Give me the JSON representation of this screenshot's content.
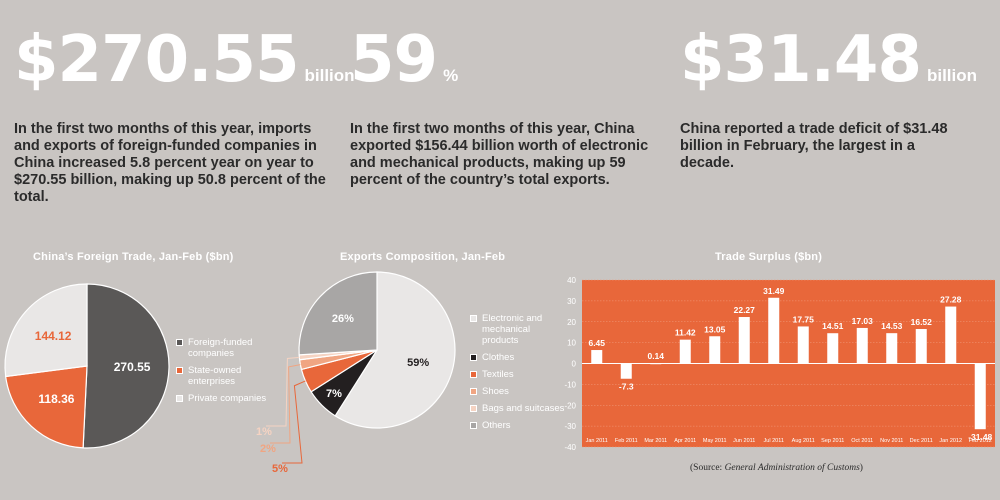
{
  "stats": [
    {
      "big": "$270.55",
      "unit": "billion",
      "desc": "In the first two months of this year, imports and exports of foreign-funded companies in China increased 5.8 percent year on year to $270.55 billion, making up 50.8 percent of the total."
    },
    {
      "big": "59",
      "unit": "%",
      "desc": "In the first two months of this year, China exported $156.44 billion worth of electronic and mechanical products, making up 59 percent of the country’s total exports."
    },
    {
      "big": "$31.48",
      "unit": "billion",
      "desc": "China reported a trade deficit of $31.48 billion in February, the largest in a decade."
    }
  ],
  "colors": {
    "orange": "#e8673a",
    "dark": "#5a5857",
    "light": "#e9e7e6",
    "gray": "#a8a6a5",
    "black": "#231f20"
  },
  "source": {
    "prefix": "(Source: ",
    "name": "General Administration of Customs",
    "suffix": ")"
  },
  "chart_data": [
    {
      "type": "pie",
      "title": "China’s Foreign Trade, Jan-Feb ($bn)",
      "labels": [
        "Foreign-funded companies",
        "State-owned enterprises",
        "Private companies"
      ],
      "values": [
        270.55,
        118.36,
        144.12
      ],
      "value_labels": [
        "270.55",
        "118.36",
        "144.12"
      ],
      "colors": [
        "#5a5857",
        "#e8673a",
        "#e9e7e6"
      ],
      "legend_position": "right"
    },
    {
      "type": "pie",
      "title": "Exports Composition, Jan-Feb",
      "labels": [
        "Electronic and mechanical products",
        "Clothes",
        "Textiles",
        "Shoes",
        "Bags and suitcases",
        "Others"
      ],
      "values": [
        59,
        7,
        5,
        2,
        1,
        26
      ],
      "value_labels": [
        "59%",
        "7%",
        "5%",
        "2%",
        "1%",
        "26%"
      ],
      "colors": [
        "#e9e7e6",
        "#231f20",
        "#e8673a",
        "#f0a582",
        "#f5d3c2",
        "#a8a6a5"
      ],
      "legend_position": "right"
    },
    {
      "type": "bar",
      "title": "Trade Surplus ($bn)",
      "categories": [
        "Jan 2011",
        "Feb 2011",
        "Mar 2011",
        "Apr 2011",
        "May 2011",
        "Jun 2011",
        "Jul 2011",
        "Aug 2011",
        "Sep 2011",
        "Oct 2011",
        "Nov 2011",
        "Dec 2011",
        "Jan 2012",
        "Feb 2012"
      ],
      "values": [
        6.45,
        -7.3,
        0.14,
        11.42,
        13.05,
        22.27,
        31.49,
        17.75,
        14.51,
        17.03,
        14.53,
        16.52,
        27.28,
        -31.48
      ],
      "value_labels": [
        "6.45",
        "-7.3",
        "0.14",
        "11.42",
        "13.05",
        "22.27",
        "31.49",
        "17.75",
        "14.51",
        "17.03",
        "14.53",
        "16.52",
        "27.28",
        "-31.48"
      ],
      "yticks": [
        40,
        30,
        20,
        10,
        0,
        -10,
        -20,
        -30,
        -40
      ],
      "ylim": [
        -40,
        40
      ],
      "grid": true,
      "bar_color": "#ffffff",
      "background": "#e8673a"
    }
  ]
}
